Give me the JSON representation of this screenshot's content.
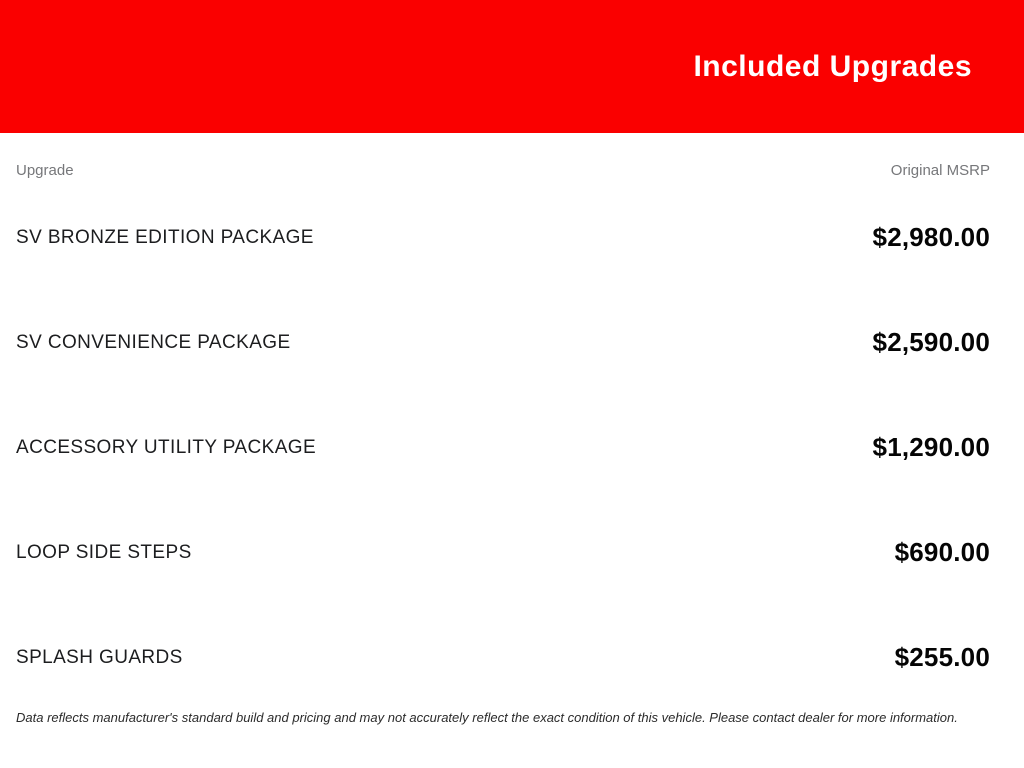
{
  "header": {
    "title": "Included Upgrades"
  },
  "table": {
    "columns": {
      "upgrade": "Upgrade",
      "msrp": "Original MSRP"
    },
    "rows": [
      {
        "label": "SV BRONZE EDITION PACKAGE",
        "price": "$2,980.00"
      },
      {
        "label": "SV CONVENIENCE PACKAGE",
        "price": "$2,590.00"
      },
      {
        "label": "ACCESSORY UTILITY PACKAGE",
        "price": "$1,290.00"
      },
      {
        "label": "LOOP SIDE STEPS",
        "price": "$690.00"
      },
      {
        "label": "SPLASH GUARDS",
        "price": "$255.00"
      }
    ]
  },
  "footer": {
    "disclaimer": "Data reflects manufacturer's standard build and pricing and may not accurately reflect the exact condition of this vehicle. Please contact dealer for more information."
  },
  "colors": {
    "banner_red": "#fa0000",
    "header_gray": "#76777a",
    "label_dark": "#1c1d1f",
    "price_black": "#050505"
  }
}
